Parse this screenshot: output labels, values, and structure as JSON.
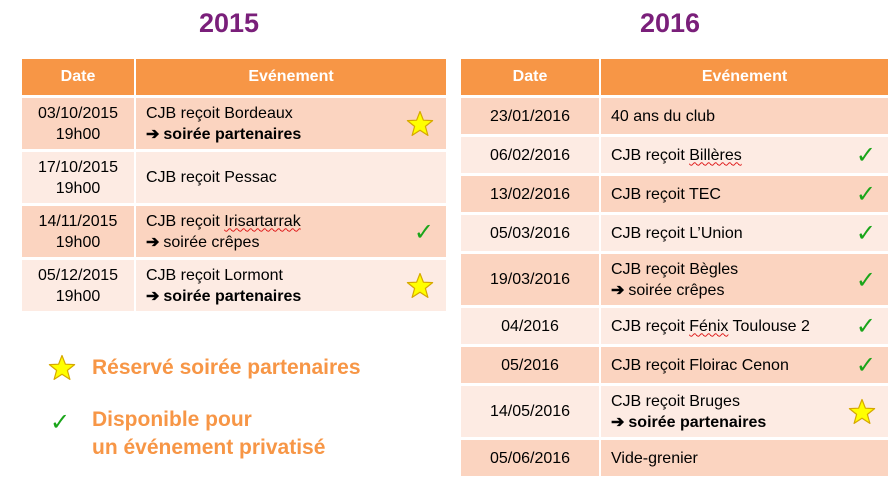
{
  "years": [
    "2015",
    "2016"
  ],
  "headers": {
    "date": "Date",
    "event": "Evénement"
  },
  "table_2015": [
    {
      "date": "03/10/2015",
      "time": "19h00",
      "event": "CJB reçoit Bordeaux",
      "sub": "soirée partenaires",
      "sub_bold": true,
      "mark": "star-icon"
    },
    {
      "date": "17/10/2015",
      "time": "19h00",
      "event": "CJB reçoit Pessac",
      "sub": "",
      "sub_bold": false,
      "mark": ""
    },
    {
      "date": "14/11/2015",
      "time": "19h00",
      "event": "CJB reçoit Irisartarrak",
      "sub": "soirée crêpes",
      "sub_bold": false,
      "mark": "check-icon"
    },
    {
      "date": "05/12/2015",
      "time": "19h00",
      "event": "CJB reçoit Lormont",
      "sub": "soirée partenaires",
      "sub_bold": true,
      "mark": "star-icon"
    }
  ],
  "table_2016": [
    {
      "date": "23/01/2016",
      "event": "40 ans du club",
      "sub": "",
      "sub_bold": false,
      "mark": ""
    },
    {
      "date": "06/02/2016",
      "event": "CJB reçoit Billères",
      "sub": "",
      "sub_bold": false,
      "mark": "check-icon"
    },
    {
      "date": "13/02/2016",
      "event": "CJB reçoit TEC",
      "sub": "",
      "sub_bold": false,
      "mark": "check-icon"
    },
    {
      "date": "05/03/2016",
      "event": "CJB reçoit L’Union",
      "sub": "",
      "sub_bold": false,
      "mark": "check-icon"
    },
    {
      "date": "19/03/2016",
      "event": "CJB reçoit Bègles",
      "sub": "soirée crêpes",
      "sub_bold": false,
      "mark": "check-icon"
    },
    {
      "date": "04/2016",
      "event": "CJB reçoit Fénix Toulouse 2",
      "sub": "",
      "sub_bold": false,
      "mark": "check-icon"
    },
    {
      "date": "05/2016",
      "event": "CJB reçoit Floirac Cenon",
      "sub": "",
      "sub_bold": false,
      "mark": "check-icon"
    },
    {
      "date": "14/05/2016",
      "event": "CJB reçoit Bruges",
      "sub": "soirée partenaires",
      "sub_bold": true,
      "mark": "star-icon"
    },
    {
      "date": "05/06/2016",
      "event": "Vide-grenier",
      "sub": "",
      "sub_bold": false,
      "mark": ""
    }
  ],
  "legend": {
    "star_label": "Réservé soirée partenaires",
    "check_line1": "Disponible pour",
    "check_line2": "un événement privatisé"
  },
  "symbols": {
    "arrow": "➔",
    "check": "✓"
  },
  "colors": {
    "year_title": "#7a1f7a",
    "header_bg": "#f79646",
    "row_dark": "#fbd4c0",
    "row_light": "#fdebe3",
    "star_fill": "#ffff00",
    "star_stroke": "#d6a800",
    "check": "#1aa51a",
    "legend_text": "#f79646"
  }
}
